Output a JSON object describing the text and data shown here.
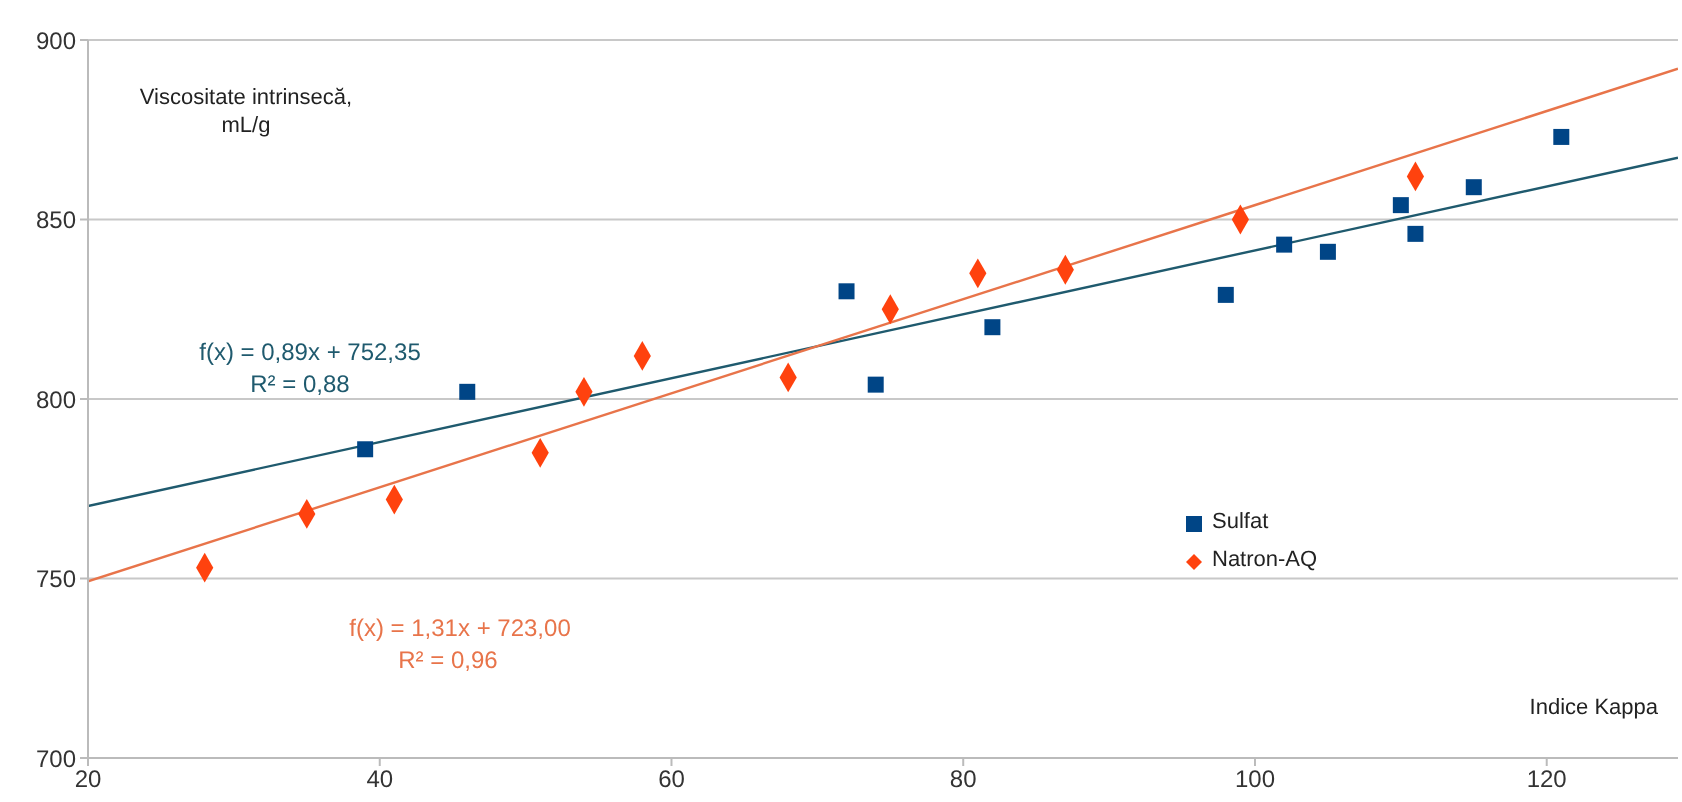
{
  "chart_data": {
    "type": "scatter",
    "xlabel": "Indice Kappa",
    "ylabel": "Viscositate intrinsecă, mL/g",
    "xlim": [
      20,
      129
    ],
    "xticks": [
      20,
      40,
      60,
      80,
      100,
      120
    ],
    "ylim": [
      700,
      900
    ],
    "yticks": [
      700,
      750,
      800,
      850,
      900
    ],
    "grid": "y",
    "legend": "right",
    "series": [
      {
        "name": "Sulfat",
        "marker": "square",
        "color": "#004586",
        "x": [
          39,
          46,
          72,
          74,
          82,
          98,
          102,
          105,
          110,
          111,
          115,
          121
        ],
        "values": [
          786,
          802,
          830,
          804,
          820,
          829,
          843,
          841,
          854,
          846,
          859,
          873
        ]
      },
      {
        "name": "Natron-AQ",
        "marker": "diamond",
        "color": "#ff420e",
        "x": [
          28,
          35,
          41,
          51,
          54,
          58,
          68,
          75,
          81,
          87,
          99,
          111
        ],
        "values": [
          753,
          768,
          772,
          785,
          802,
          812,
          806,
          825,
          835,
          836,
          850,
          862
        ]
      },
      {
        "type": "line",
        "marker": "none",
        "color": "#1f5a6e",
        "x": [
          20,
          129
        ],
        "values": [
          770.2,
          867.2
        ]
      },
      {
        "type": "line",
        "marker": "none",
        "color": "#e8744a",
        "x": [
          20,
          129
        ],
        "values": [
          749.2,
          892.0
        ]
      }
    ],
    "annotations": [
      "f(x) = 0,89x + 752,35",
      "R² = 0,88",
      "f(x) = 1,31x + 723,00",
      "R² = 0,96"
    ]
  }
}
